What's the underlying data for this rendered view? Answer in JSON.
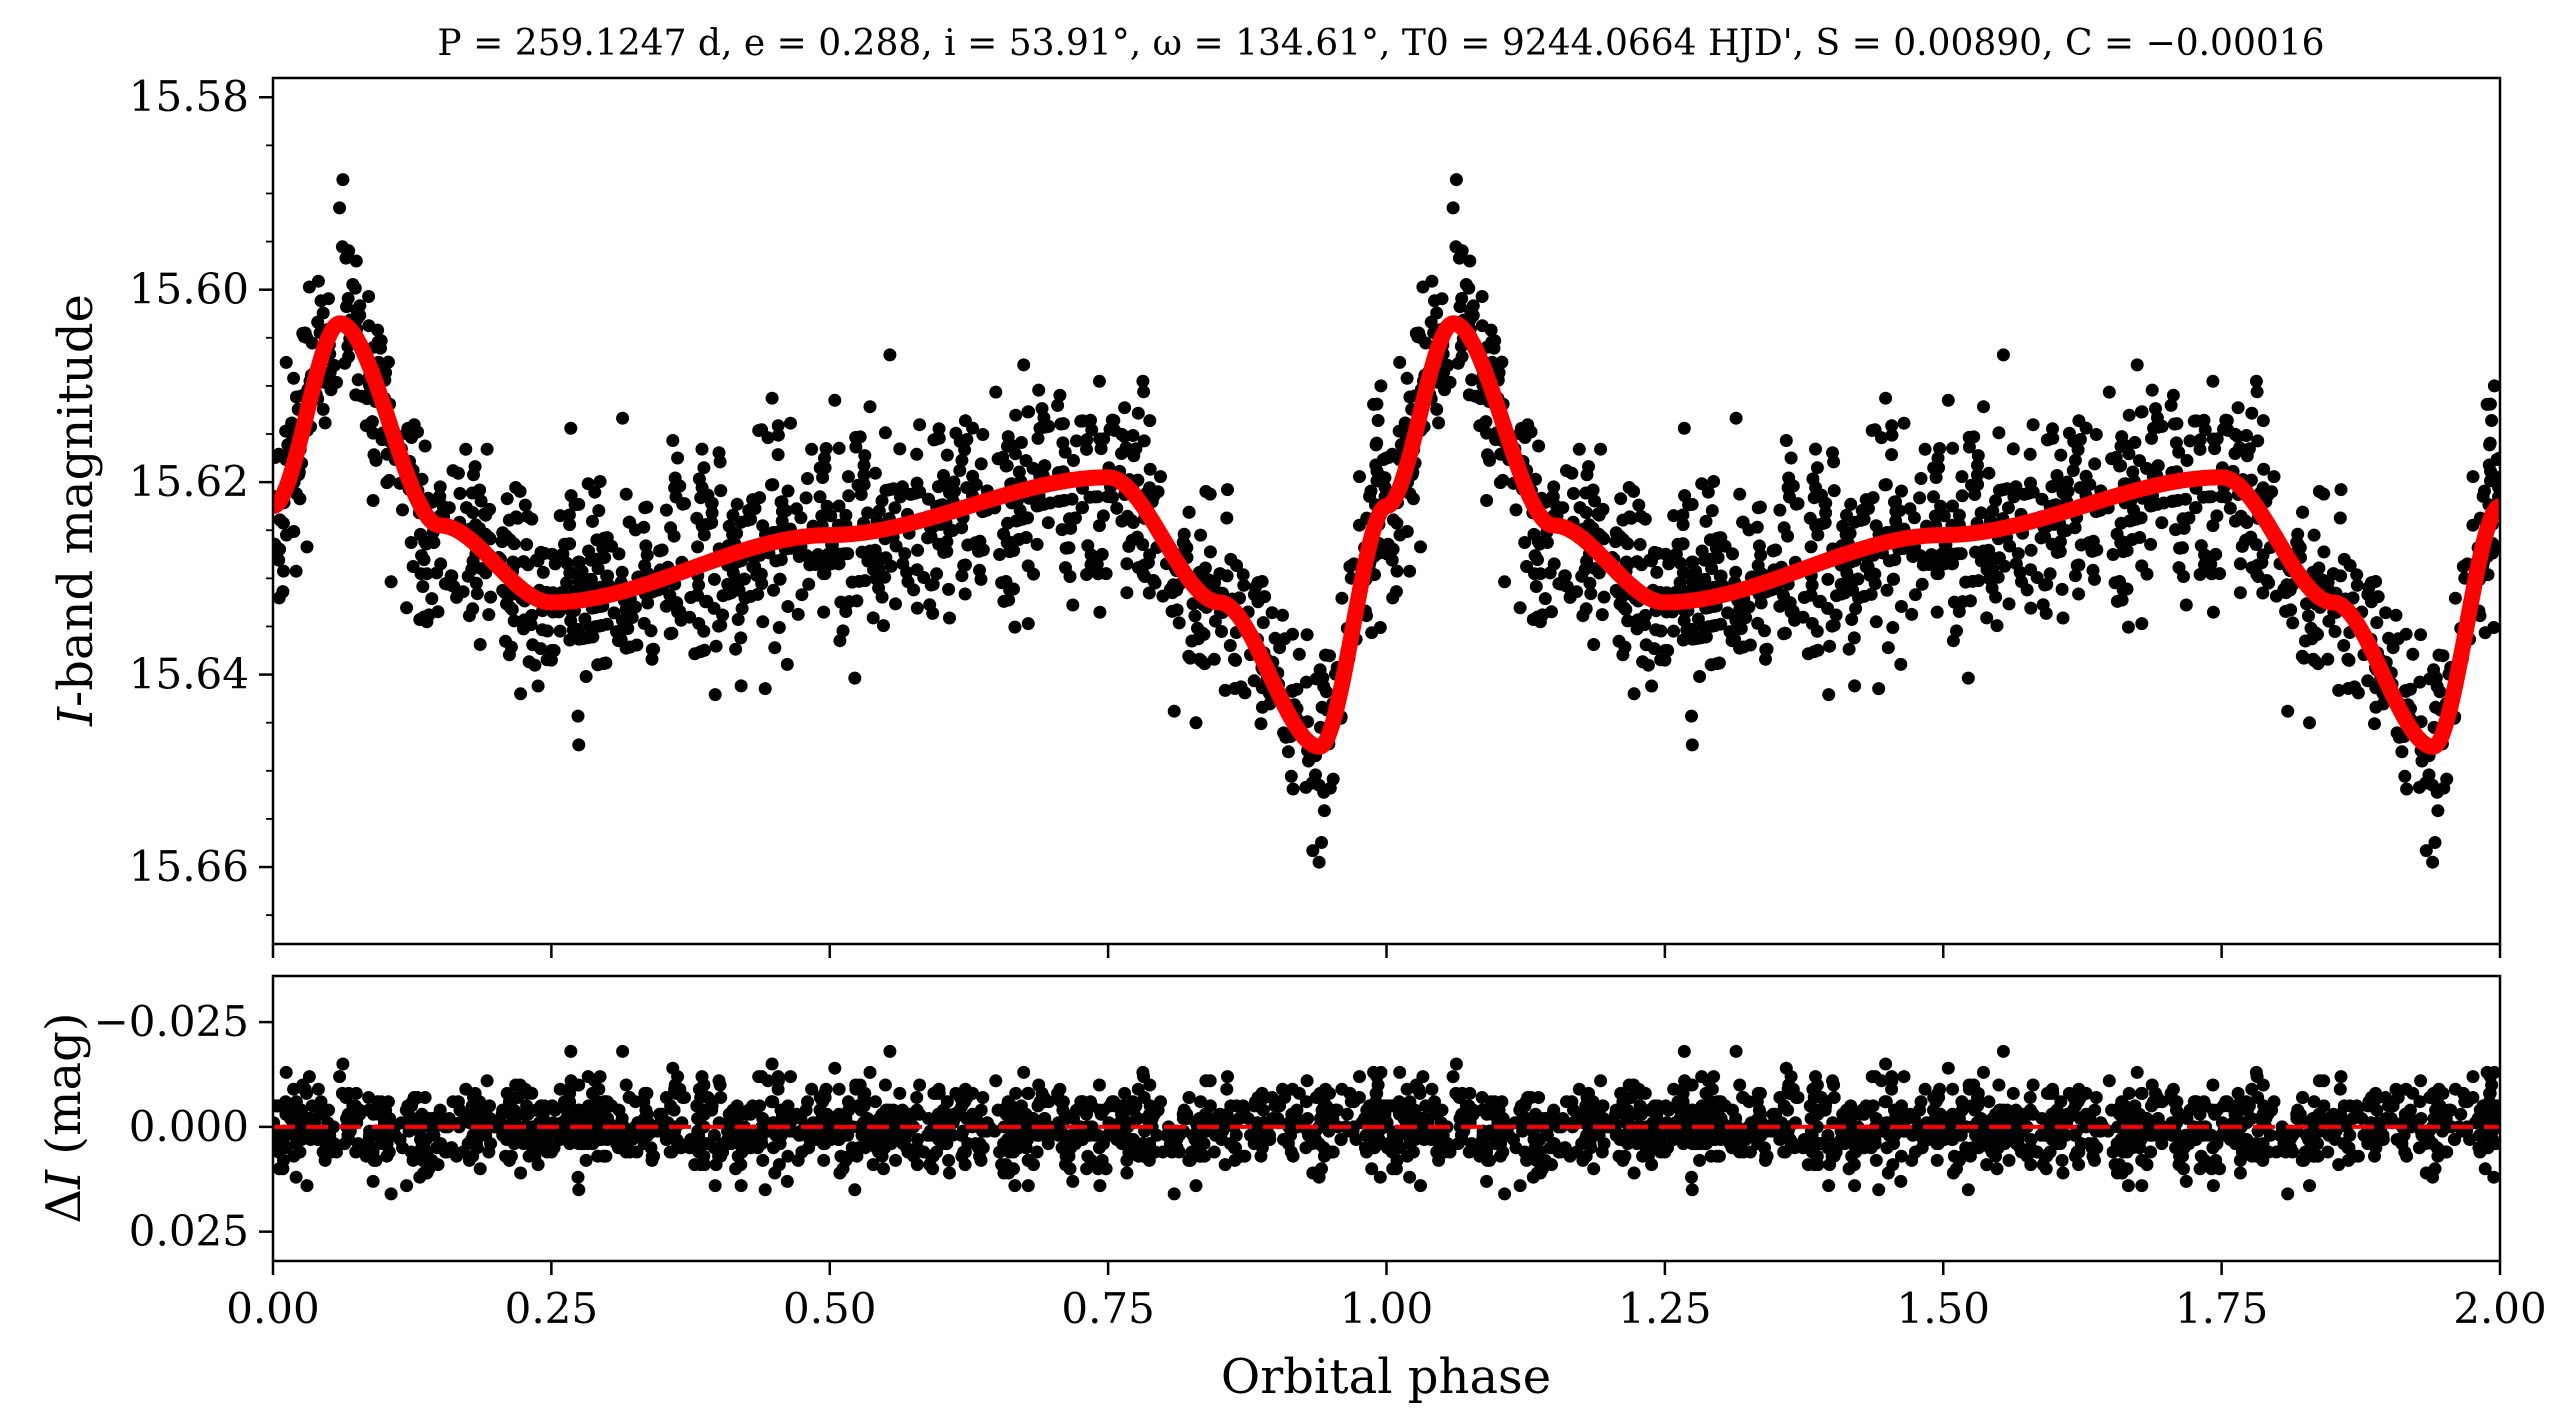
{
  "chart_data": [
    {
      "panel": "light-curve",
      "type": "scatter",
      "title": "P = 259.1247 d, e = 0.288, i = 53.91°, ω = 134.61°, T0 = 9244.0664 HJD', S = 0.00890, C = −0.00016",
      "xlabel": "Orbital phase",
      "ylabel": "I-band magnitude",
      "xlim": [
        0.0,
        2.0
      ],
      "ylim": [
        15.668,
        15.578
      ],
      "y_inverted": true,
      "ytick_labels": [
        "15.58",
        "15.60",
        "15.62",
        "15.64",
        "15.66"
      ],
      "yticks": [
        15.58,
        15.6,
        15.62,
        15.64,
        15.66
      ],
      "xticks": [
        0.0,
        0.25,
        0.5,
        0.75,
        1.0,
        1.25,
        1.5,
        1.75,
        2.0
      ],
      "series": [
        {
          "name": "observations",
          "color": "#000000",
          "points_per_cycle_approx": 1250,
          "scatter_sigma_mag": 0.0055
        },
        {
          "name": "model",
          "color": "#ff0000",
          "line": "solid",
          "key_points": [
            {
              "x": 0.0,
              "y": 15.6225
            },
            {
              "x": 0.06,
              "y": 15.6035
            },
            {
              "x": 0.15,
              "y": 15.6245
            },
            {
              "x": 0.25,
              "y": 15.6325
            },
            {
              "x": 0.5,
              "y": 15.6255
            },
            {
              "x": 0.75,
              "y": 15.6195
            },
            {
              "x": 0.85,
              "y": 15.6325
            },
            {
              "x": 0.94,
              "y": 15.6475
            },
            {
              "x": 1.0,
              "y": 15.6225
            }
          ]
        }
      ]
    },
    {
      "panel": "residuals",
      "type": "scatter",
      "xlabel": "Orbital phase",
      "ylabel": "ΔI (mag)",
      "xlim": [
        0.0,
        2.0
      ],
      "ylim": [
        0.032,
        -0.036
      ],
      "y_inverted": true,
      "yticks": [
        -0.025,
        0.0,
        0.025
      ],
      "ytick_labels": [
        "−0.025",
        "0.000",
        "0.025"
      ],
      "xticks": [
        0.0,
        0.25,
        0.5,
        0.75,
        1.0,
        1.25,
        1.5,
        1.75,
        2.0
      ],
      "xtick_labels": [
        "0.00",
        "0.25",
        "0.50",
        "0.75",
        "1.00",
        "1.25",
        "1.50",
        "1.75",
        "2.00"
      ],
      "reference_line": {
        "y": 0.0,
        "color": "#ff0000",
        "style": "dashed"
      },
      "residual_sigma_mag": 0.0055
    }
  ]
}
